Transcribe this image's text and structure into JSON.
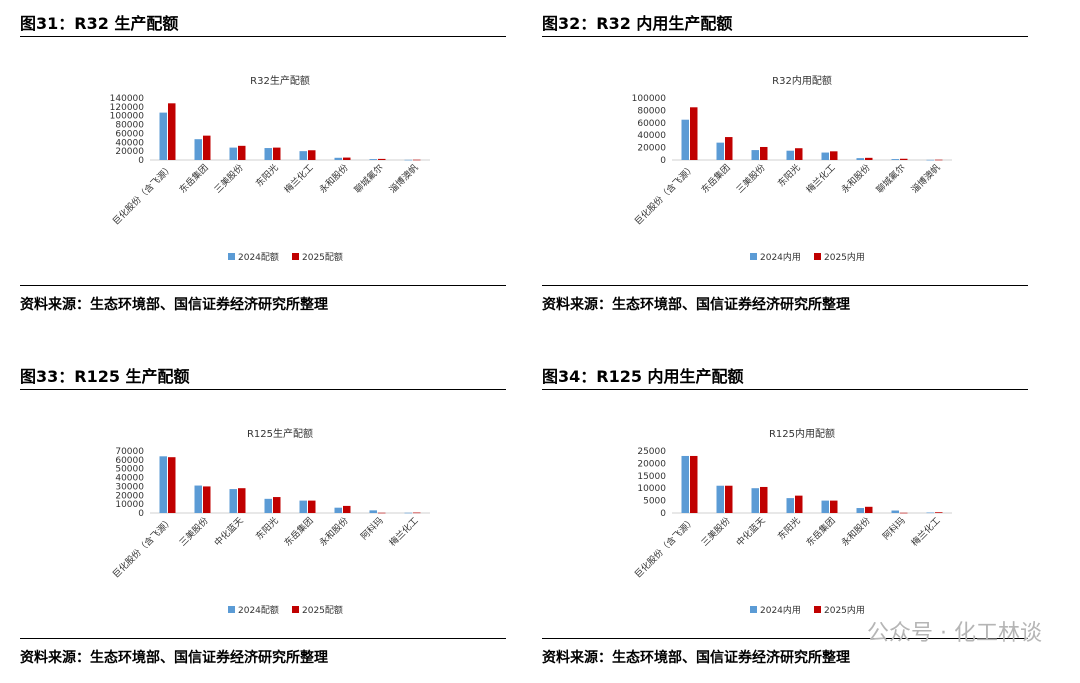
{
  "panels": [
    {
      "figure_title": "图31：R32 生产配额",
      "source": "资料来源：生态环境部、国信证券经济研究所整理",
      "chart_data": {
        "type": "bar",
        "title": "R32生产配额",
        "categories": [
          "巨化股份（含飞源）",
          "东岳集团",
          "三美股份",
          "东阳光",
          "梅兰化工",
          "永和股份",
          "聊城氟尔",
          "淄博澳帆"
        ],
        "series": [
          {
            "name": "2024配额",
            "color": "#5B9BD5",
            "values": [
              107000,
              47000,
              28000,
              27000,
              20000,
              5000,
              2000,
              500
            ]
          },
          {
            "name": "2025配额",
            "color": "#C00000",
            "values": [
              128000,
              55000,
              32000,
              28000,
              22000,
              5500,
              2500,
              700
            ]
          }
        ],
        "ylim": [
          0,
          140000
        ],
        "yticks": [
          "140000",
          "120000",
          "100000",
          "80000",
          "60000",
          "40000",
          "20000",
          "0"
        ],
        "legend": "bottom"
      }
    },
    {
      "figure_title": "图32：R32 内用生产配额",
      "source": "资料来源：生态环境部、国信证券经济研究所整理",
      "chart_data": {
        "type": "bar",
        "title": "R32内用配额",
        "categories": [
          "巨化股份（含飞源）",
          "东岳集团",
          "三美股份",
          "东阳光",
          "梅兰化工",
          "永和股份",
          "聊城氟尔",
          "淄博澳帆"
        ],
        "series": [
          {
            "name": "2024内用",
            "color": "#5B9BD5",
            "values": [
              65000,
              28000,
              16000,
              15000,
              12000,
              3000,
              1500,
              300
            ]
          },
          {
            "name": "2025内用",
            "color": "#C00000",
            "values": [
              85000,
              37000,
              21000,
              19000,
              14000,
              3500,
              2000,
              500
            ]
          }
        ],
        "ylim": [
          0,
          100000
        ],
        "yticks": [
          "100000",
          "80000",
          "60000",
          "40000",
          "20000",
          "0"
        ],
        "legend": "bottom"
      }
    },
    {
      "figure_title": "图33：R125 生产配额",
      "source": "资料来源：生态环境部、国信证券经济研究所整理",
      "chart_data": {
        "type": "bar",
        "title": "R125生产配额",
        "categories": [
          "巨化股份（含飞源）",
          "三美股份",
          "中化蓝天",
          "东阳光",
          "东岳集团",
          "永和股份",
          "阿科玛",
          "梅兰化工"
        ],
        "series": [
          {
            "name": "2024配额",
            "color": "#5B9BD5",
            "values": [
              64000,
              31000,
              27000,
              16000,
              14000,
              6000,
              3000,
              300
            ]
          },
          {
            "name": "2025配额",
            "color": "#C00000",
            "values": [
              63000,
              30000,
              28000,
              18000,
              14000,
              8000,
              300,
              500
            ]
          }
        ],
        "ylim": [
          0,
          70000
        ],
        "yticks": [
          "70000",
          "60000",
          "50000",
          "40000",
          "30000",
          "20000",
          "10000",
          "0"
        ],
        "legend": "bottom"
      }
    },
    {
      "figure_title": "图34：R125 内用生产配额",
      "source": "资料来源：生态环境部、国信证券经济研究所整理",
      "chart_data": {
        "type": "bar",
        "title": "R125内用配额",
        "categories": [
          "巨化股份（含飞源）",
          "三美股份",
          "中化蓝天",
          "东阳光",
          "东岳集团",
          "永和股份",
          "阿科玛",
          "梅兰化工"
        ],
        "series": [
          {
            "name": "2024内用",
            "color": "#5B9BD5",
            "values": [
              23000,
              11000,
              10000,
              6000,
              5000,
              2000,
              1000,
              200
            ]
          },
          {
            "name": "2025内用",
            "color": "#C00000",
            "values": [
              23000,
              11000,
              10500,
              7000,
              5000,
              2500,
              100,
              300
            ]
          }
        ],
        "ylim": [
          0,
          25000
        ],
        "yticks": [
          "25000",
          "20000",
          "15000",
          "10000",
          "5000",
          "0"
        ],
        "legend": "bottom"
      }
    }
  ],
  "watermark": "公众号 · 化工林谈"
}
